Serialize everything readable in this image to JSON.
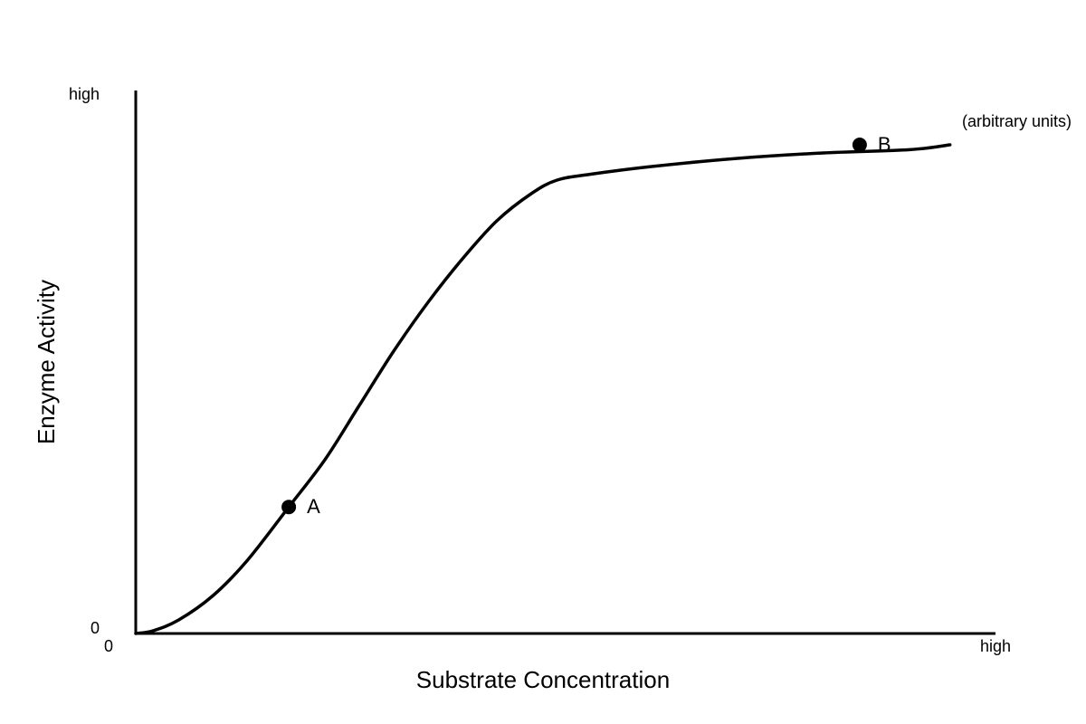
{
  "chart_data": {
    "type": "line",
    "title": "",
    "xlabel": "Substrate Concentration",
    "ylabel": "Enzyme Activity",
    "x_ticks": {
      "min": "0",
      "max": "high"
    },
    "y_ticks": {
      "min": "0",
      "max": "high"
    },
    "units_note": "(arbitrary units)",
    "xlim": [
      0,
      100
    ],
    "ylim": [
      0,
      100
    ],
    "series": [
      {
        "color": "#000000",
        "points": [
          [
            0,
            0
          ],
          [
            2,
            0.5
          ],
          [
            5,
            2.5
          ],
          [
            9,
            7
          ],
          [
            13,
            13.5
          ],
          [
            17.8,
            23.3
          ],
          [
            22,
            32
          ],
          [
            26,
            42
          ],
          [
            30,
            52
          ],
          [
            34,
            61
          ],
          [
            38,
            69
          ],
          [
            42,
            76
          ],
          [
            46,
            81
          ],
          [
            49,
            83.5
          ],
          [
            53,
            84.6
          ],
          [
            60,
            86
          ],
          [
            70,
            87.5
          ],
          [
            80,
            88.5
          ],
          [
            90,
            89.1
          ],
          [
            94.7,
            90
          ]
        ]
      }
    ],
    "points": [
      {
        "label": "A",
        "x": 17.8,
        "y": 23.3
      },
      {
        "label": "B",
        "x": 84.2,
        "y": 90
      }
    ],
    "grid": false,
    "legend": "none"
  }
}
